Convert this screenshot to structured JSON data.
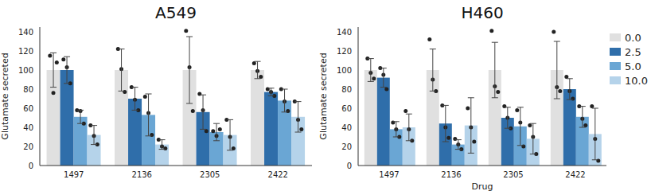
{
  "chart_data": [
    {
      "type": "bar",
      "title": "A549",
      "y_label": "Glutamate secreted",
      "categories": [
        "1497",
        "2136",
        "2305",
        "2422"
      ],
      "ylim": [
        0,
        145
      ],
      "yticks": [
        0,
        20,
        40,
        60,
        80,
        100,
        120,
        140
      ],
      "grid": false,
      "series": [
        {
          "name": "0.0",
          "color": "#e0e0e0",
          "values": [
            100,
            100,
            100,
            100
          ],
          "error": [
            18,
            22,
            35,
            9
          ],
          "points": [
            [
              115,
              76,
              108
            ],
            [
              122,
              101,
              77
            ],
            [
              141,
              103,
              57
            ],
            [
              107,
              99,
              93
            ]
          ]
        },
        {
          "name": "2.5",
          "color": "#2f6eaa",
          "values": [
            100,
            70,
            56,
            77
          ],
          "error": [
            14,
            12,
            18,
            4
          ],
          "points": [
            [
              111,
              103,
              86
            ],
            [
              82,
              69,
              58
            ],
            [
              75,
              58,
              36
            ],
            [
              80,
              77,
              73
            ]
          ]
        },
        {
          "name": "5.0",
          "color": "#6aa6d4",
          "values": [
            51,
            53,
            35,
            68
          ],
          "error": [
            7,
            22,
            9,
            12
          ],
          "points": [
            [
              58,
              57,
              44
            ],
            [
              72,
              55,
              32
            ],
            [
              36,
              31,
              38
            ],
            [
              80,
              67,
              57
            ]
          ]
        },
        {
          "name": "10.0",
          "color": "#b5d3ea",
          "values": [
            32,
            22,
            32,
            51
          ],
          "error": [
            10,
            5,
            16,
            16
          ],
          "points": [
            [
              42,
              31,
              22
            ],
            [
              27,
              20,
              18
            ],
            [
              48,
              30,
              18
            ],
            [
              67,
              48,
              38
            ]
          ]
        }
      ]
    },
    {
      "type": "bar",
      "title": "H460",
      "x_label": "Drug",
      "y_label": "Glutamate secreted",
      "categories": [
        "1497",
        "2136",
        "2305",
        "2422"
      ],
      "ylim": [
        0,
        145
      ],
      "yticks": [
        0,
        20,
        40,
        60,
        80,
        100,
        120,
        140
      ],
      "grid": false,
      "legend": "right",
      "series": [
        {
          "name": "0.0",
          "color": "#e0e0e0",
          "values": [
            100,
            100,
            100,
            100
          ],
          "error": [
            12,
            22,
            29,
            30
          ],
          "points": [
            [
              112,
              97,
              91
            ],
            [
              132,
              90,
              78
            ],
            [
              141,
              83,
              77
            ],
            [
              140,
              82,
              78
            ]
          ]
        },
        {
          "name": "2.5",
          "color": "#2f6eaa",
          "values": [
            92,
            44,
            50,
            80
          ],
          "error": [
            10,
            19,
            11,
            11
          ],
          "points": [
            [
              102,
              95,
              80
            ],
            [
              63,
              40,
              29
            ],
            [
              62,
              50,
              39
            ],
            [
              93,
              78,
              70
            ]
          ]
        },
        {
          "name": "5.0",
          "color": "#6aa6d4",
          "values": [
            38,
            22,
            41,
            51
          ],
          "error": [
            8,
            5,
            20,
            11
          ],
          "points": [
            [
              45,
              38,
              30
            ],
            [
              28,
              22,
              17
            ],
            [
              58,
              45,
              20
            ],
            [
              62,
              49,
              42
            ]
          ]
        },
        {
          "name": "10.0",
          "color": "#b5d3ea",
          "values": [
            40,
            42,
            28,
            33
          ],
          "error": [
            14,
            29,
            16,
            27
          ],
          "points": [
            [
              57,
              38,
              26
            ],
            [
              60,
              40,
              25
            ],
            [
              42,
              30,
              12
            ],
            [
              62,
              28,
              5
            ]
          ]
        }
      ]
    }
  ]
}
